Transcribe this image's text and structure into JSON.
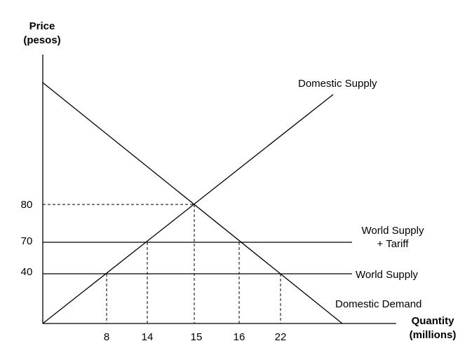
{
  "y_axis": {
    "title": [
      "Price",
      "(pesos)"
    ],
    "ticks": [
      80,
      70,
      40
    ]
  },
  "x_axis": {
    "title": [
      "Quantity",
      "(millions)"
    ],
    "ticks": [
      8,
      14,
      15,
      16,
      22
    ]
  },
  "curves": {
    "domestic_supply": "Domestic Supply",
    "world_supply_tariff": [
      "World Supply",
      "+ Tariff"
    ],
    "world_supply": "World Supply",
    "domestic_demand": "Domestic Demand"
  }
}
